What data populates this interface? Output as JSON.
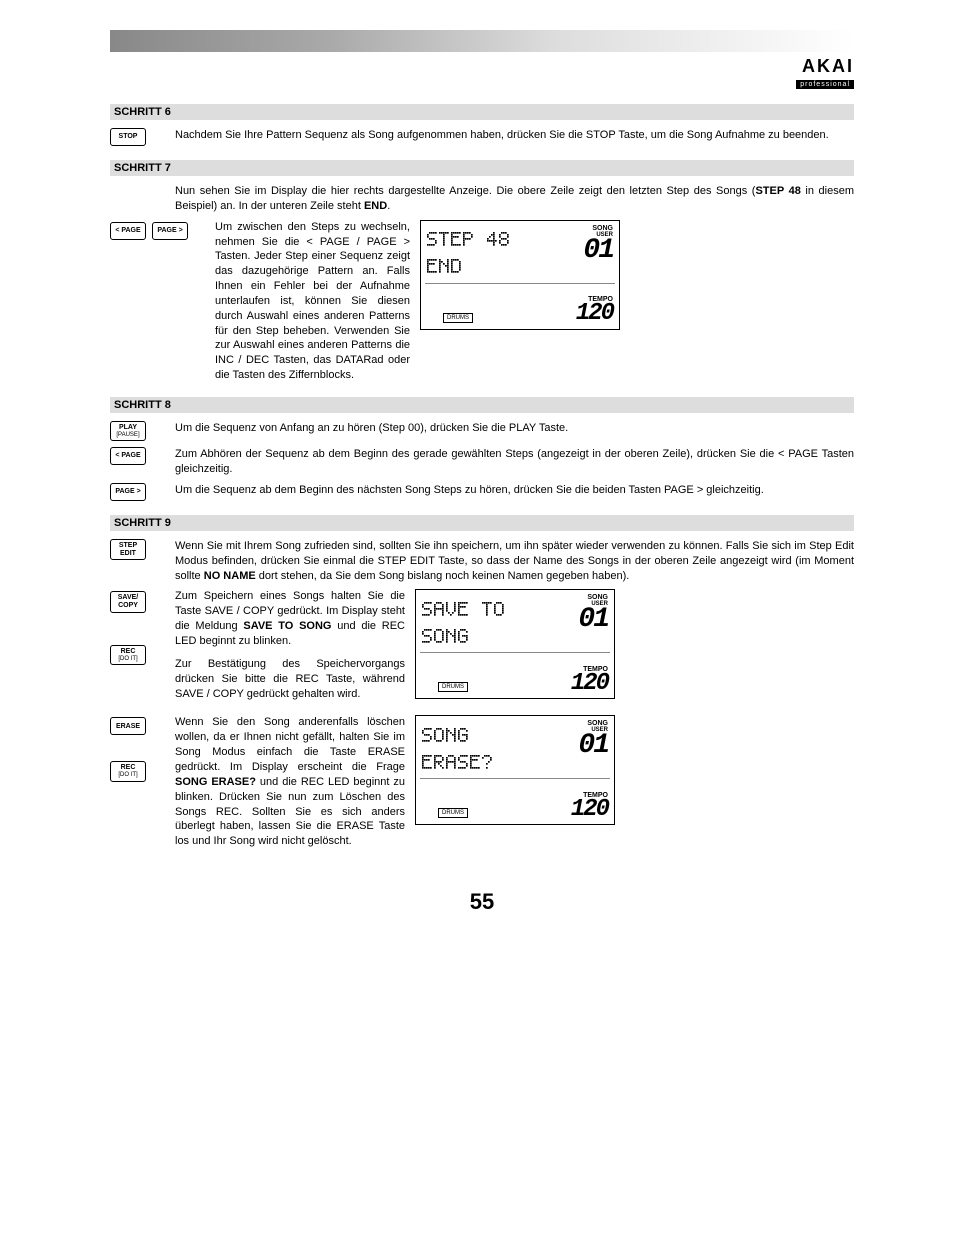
{
  "brand": {
    "name": "AKAI",
    "sub": "professional"
  },
  "page_number": "55",
  "buttons": {
    "stop": "STOP",
    "page_left": "< PAGE",
    "page_right": "PAGE >",
    "play": "PLAY",
    "play_sub": "[PAUSE]",
    "step_edit": "STEP",
    "step_edit2": "EDIT",
    "save_copy": "SAVE/",
    "save_copy2": "COPY",
    "rec": "REC",
    "rec_sub": "[DO IT]",
    "erase": "ERASE"
  },
  "sections": {
    "s6": {
      "title": "SCHRITT 6",
      "p1": "Nachdem Sie Ihre Pattern Sequenz als Song aufgenommen haben, drücken Sie die  STOP Taste, um die Song Aufnahme zu beenden."
    },
    "s7": {
      "title": "SCHRITT 7",
      "p1_a": "Nun sehen Sie im Display die hier rechts dargestellte Anzeige.  Die obere Zeile zeigt den letzten Step des Songs (",
      "p1_b": "STEP 48",
      "p1_c": " in diesem Beispiel) an. In der unteren Zeile steht ",
      "p1_d": "END",
      "p1_e": ".",
      "p2": "Um zwischen den Steps zu wechseln, nehmen Sie die < PAGE / PAGE > Tasten.  Jeder Step einer Sequenz zeigt das dazugehörige Pattern an.  Falls Ihnen ein Fehler bei der Aufnahme unterlaufen ist, können Sie diesen durch Auswahl eines anderen Patterns für den Step beheben.  Verwenden Sie zur Auswahl eines anderen Patterns die INC / DEC Tasten, das DATARad oder die Tasten des Ziffernblocks."
    },
    "s8": {
      "title": "SCHRITT 8",
      "p1": "Um die Sequenz von Anfang an zu hören (Step 00), drücken Sie die PLAY Taste.",
      "p2": "Zum Abhören der Sequenz ab dem Beginn des gerade gewählten Steps  (angezeigt in der oberen Zeile), drücken Sie die < PAGE Tasten gleichzeitig.",
      "p3": "Um die Sequenz ab dem Beginn des nächsten Song Steps zu hören, drücken Sie die beiden Tasten PAGE > gleichzeitig."
    },
    "s9": {
      "title": "SCHRITT 9",
      "p1_a": "Wenn Sie mit Ihrem Song zufrieden sind, sollten Sie ihn speichern, um ihn später wieder verwenden zu können.  Falls Sie sich im Step Edit Modus befinden, drücken Sie einmal die STEP EDIT Taste, so dass der Name des Songs in der oberen Zeile angezeigt wird (im Moment sollte ",
      "p1_b": "NO NAME",
      "p1_c": " dort stehen, da Sie dem Song bislang noch keinen Namen gegeben haben).",
      "p2_a": "Zum Speichern eines Songs halten Sie die Taste SAVE / COPY gedrückt.  Im Display steht die Meldung ",
      "p2_b": "SAVE TO SONG",
      "p2_c": " und die REC LED beginnt zu blinken.",
      "p3": "Zur Bestätigung des Speichervorgangs drücken Sie bitte die REC Taste, während  SAVE / COPY gedrückt gehalten wird.",
      "p4_a": "Wenn Sie den Song anderenfalls löschen wollen, da er Ihnen nicht gefällt, halten Sie im Song Modus einfach die Taste ERASE gedrückt.   Im Display erscheint die Frage ",
      "p4_b": "SONG ERASE?",
      "p4_c": " und die REC LED beginnt zu blinken.  Drücken Sie nun zum Löschen des Songs REC.  Sollten Sie es sich anders überlegt haben, lassen Sie die ERASE Taste los und Ihr Song wird nicht gelöscht."
    }
  },
  "lcd": {
    "song_label": "SONG",
    "user_label": "USER",
    "tempo_label": "TEMPO",
    "drums_label": "DRUMS",
    "song_val": "01",
    "tempo_val": "120",
    "d1_l1": "STEP 48",
    "d1_l2": "END",
    "d2_l1": "SAVE TO",
    "d2_l2": "SONG",
    "d3_l1": "SONG",
    "d3_l2": "ERASE?",
    "colors": {
      "border": "#000000",
      "text": "#000000",
      "grid": "#888888"
    }
  }
}
